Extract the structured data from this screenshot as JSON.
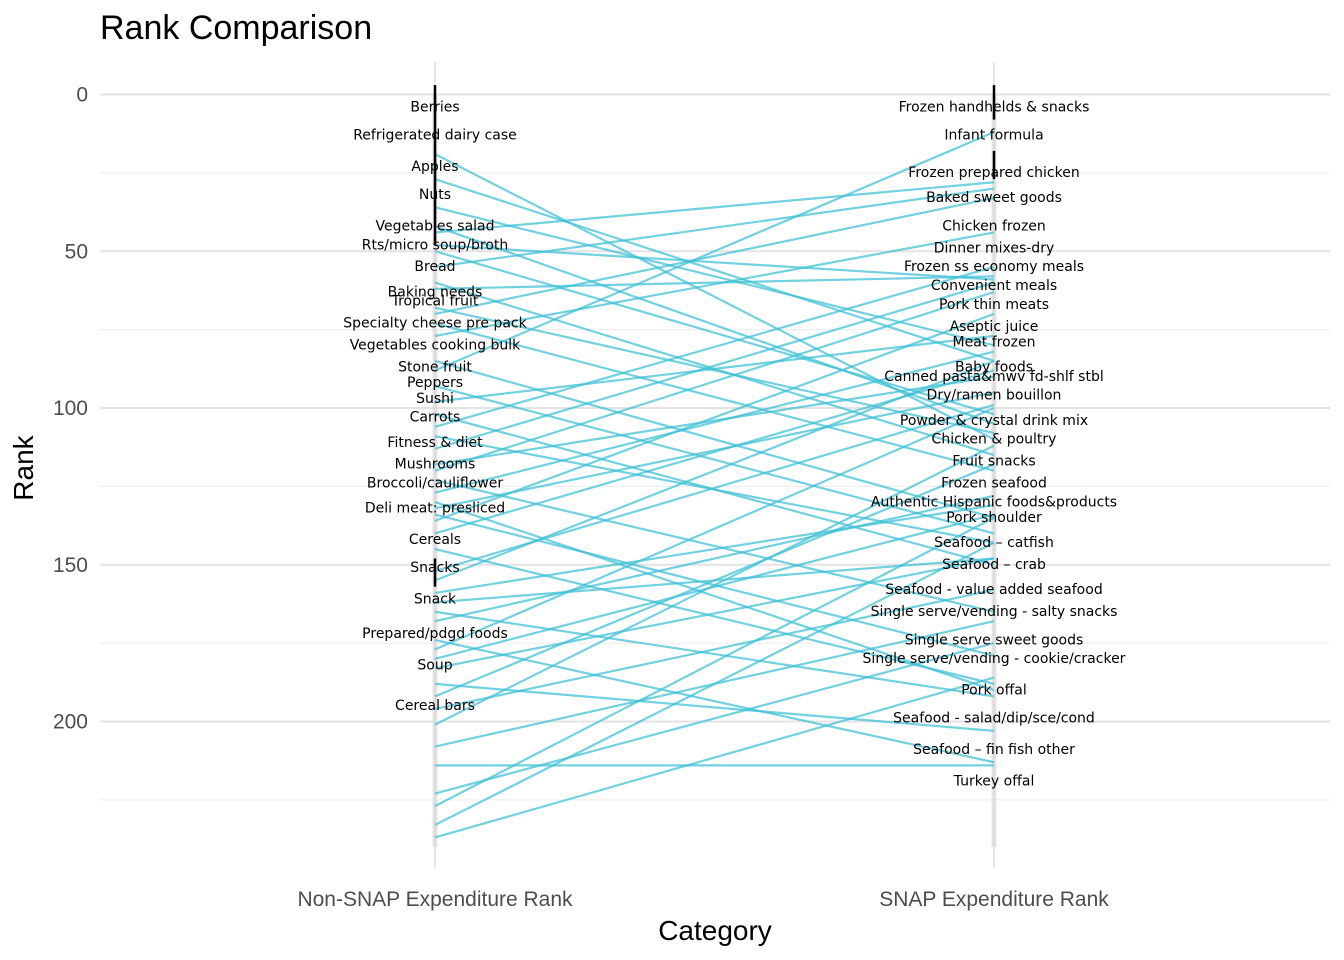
{
  "chart_data": {
    "type": "line",
    "title": "Rank Comparison",
    "xlabel": "Category",
    "ylabel": "Rank",
    "categories": [
      "Non-SNAP Expenditure Rank",
      "SNAP Expenditure Rank"
    ],
    "y_ticks": [
      0,
      50,
      100,
      150,
      200
    ],
    "ylim": [
      -11,
      248
    ],
    "y_reversed": true,
    "grid": true,
    "line_color": "#3bbfd4",
    "label_bars": {
      "left": [
        [
          -3,
          48
        ],
        [
          148,
          157
        ]
      ],
      "right": [
        [
          -3,
          8
        ],
        [
          18,
          27
        ]
      ]
    },
    "left_labels": [
      {
        "label": "Berries",
        "rank": 6
      },
      {
        "label": "Refrigerated dairy case",
        "rank": 15
      },
      {
        "label": "Apples",
        "rank": 25
      },
      {
        "label": "Nuts",
        "rank": 34
      },
      {
        "label": "Vegetables salad",
        "rank": 44
      },
      {
        "label": "Rts/micro soup/broth",
        "rank": 50
      },
      {
        "label": "Bread",
        "rank": 57
      },
      {
        "label": "Baking needs",
        "rank": 65
      },
      {
        "label": "Tropical fruit",
        "rank": 68
      },
      {
        "label": "Specialty cheese pre pack",
        "rank": 75
      },
      {
        "label": "Vegetables cooking bulk",
        "rank": 82
      },
      {
        "label": "Stone fruit",
        "rank": 89
      },
      {
        "label": "Peppers",
        "rank": 94
      },
      {
        "label": "Sushi",
        "rank": 99
      },
      {
        "label": "Carrots",
        "rank": 105
      },
      {
        "label": "Fitness & diet",
        "rank": 113
      },
      {
        "label": "Mushrooms",
        "rank": 120
      },
      {
        "label": "Broccoli/cauliflower",
        "rank": 126
      },
      {
        "label": "Deli meat: presliced",
        "rank": 134
      },
      {
        "label": "Cereals",
        "rank": 144
      },
      {
        "label": "Snacks",
        "rank": 153
      },
      {
        "label": "Snack",
        "rank": 163
      },
      {
        "label": "Prepared/pdgd foods",
        "rank": 174
      },
      {
        "label": "Soup",
        "rank": 184
      },
      {
        "label": "Cereal bars",
        "rank": 197
      }
    ],
    "right_labels": [
      {
        "label": "Frozen handhelds & snacks",
        "rank": 6
      },
      {
        "label": "Infant formula",
        "rank": 15
      },
      {
        "label": "Frozen prepared chicken",
        "rank": 27
      },
      {
        "label": "Baked sweet goods",
        "rank": 35
      },
      {
        "label": "Chicken frozen",
        "rank": 44
      },
      {
        "label": "Dinner mixes-dry",
        "rank": 51
      },
      {
        "label": "Frozen ss economy meals",
        "rank": 57
      },
      {
        "label": "Convenient meals",
        "rank": 63
      },
      {
        "label": "Pork thin meats",
        "rank": 69
      },
      {
        "label": "Aseptic juice",
        "rank": 76
      },
      {
        "label": "Meat frozen",
        "rank": 81
      },
      {
        "label": "Baby foods",
        "rank": 89
      },
      {
        "label": "Canned pasta&mwv fd-shlf stbl",
        "rank": 92
      },
      {
        "label": "Dry/ramen bouillon",
        "rank": 98
      },
      {
        "label": "Powder & crystal drink mix",
        "rank": 106
      },
      {
        "label": "Chicken & poultry",
        "rank": 112
      },
      {
        "label": "Fruit snacks",
        "rank": 119
      },
      {
        "label": "Frozen seafood",
        "rank": 126
      },
      {
        "label": "Authentic Hispanic foods&products",
        "rank": 132
      },
      {
        "label": "Pork shoulder",
        "rank": 137
      },
      {
        "label": "Seafood – catfish",
        "rank": 145
      },
      {
        "label": "Seafood – crab",
        "rank": 152
      },
      {
        "label": "Seafood - value added seafood",
        "rank": 160
      },
      {
        "label": "Single serve/vending - salty snacks",
        "rank": 167
      },
      {
        "label": "Single serve sweet goods",
        "rank": 176
      },
      {
        "label": "Single serve/vending - cookie/cracker",
        "rank": 182
      },
      {
        "label": "Pork offal",
        "rank": 192
      },
      {
        "label": "Seafood - salad/dip/sce/cond",
        "rank": 201
      },
      {
        "label": "Seafood – fin fish other",
        "rank": 211
      },
      {
        "label": "Turkey offal",
        "rank": 221
      }
    ],
    "segments": [
      [
        19,
        110
      ],
      [
        27,
        85
      ],
      [
        36,
        80
      ],
      [
        42,
        105
      ],
      [
        44,
        28
      ],
      [
        48,
        59
      ],
      [
        50,
        102
      ],
      [
        55,
        30
      ],
      [
        60,
        115
      ],
      [
        62,
        58
      ],
      [
        68,
        108
      ],
      [
        70,
        33
      ],
      [
        73,
        120
      ],
      [
        77,
        44
      ],
      [
        85,
        135
      ],
      [
        88,
        12
      ],
      [
        93,
        140
      ],
      [
        98,
        77
      ],
      [
        102,
        150
      ],
      [
        106,
        55
      ],
      [
        109,
        143
      ],
      [
        113,
        60
      ],
      [
        118,
        90
      ],
      [
        120,
        63
      ],
      [
        123,
        165
      ],
      [
        127,
        82
      ],
      [
        130,
        190
      ],
      [
        132,
        95
      ],
      [
        134,
        179
      ],
      [
        136,
        70
      ],
      [
        140,
        88
      ],
      [
        145,
        188
      ],
      [
        152,
        99
      ],
      [
        155,
        85
      ],
      [
        159,
        131
      ],
      [
        162,
        148
      ],
      [
        165,
        192
      ],
      [
        168,
        128
      ],
      [
        174,
        213
      ],
      [
        177,
        100
      ],
      [
        180,
        134
      ],
      [
        183,
        148
      ],
      [
        188,
        203
      ],
      [
        192,
        118
      ],
      [
        196,
        158
      ],
      [
        201,
        112
      ],
      [
        208,
        168
      ],
      [
        214,
        214
      ],
      [
        223,
        175
      ],
      [
        227,
        135
      ],
      [
        233,
        143
      ],
      [
        237,
        186
      ]
    ]
  }
}
